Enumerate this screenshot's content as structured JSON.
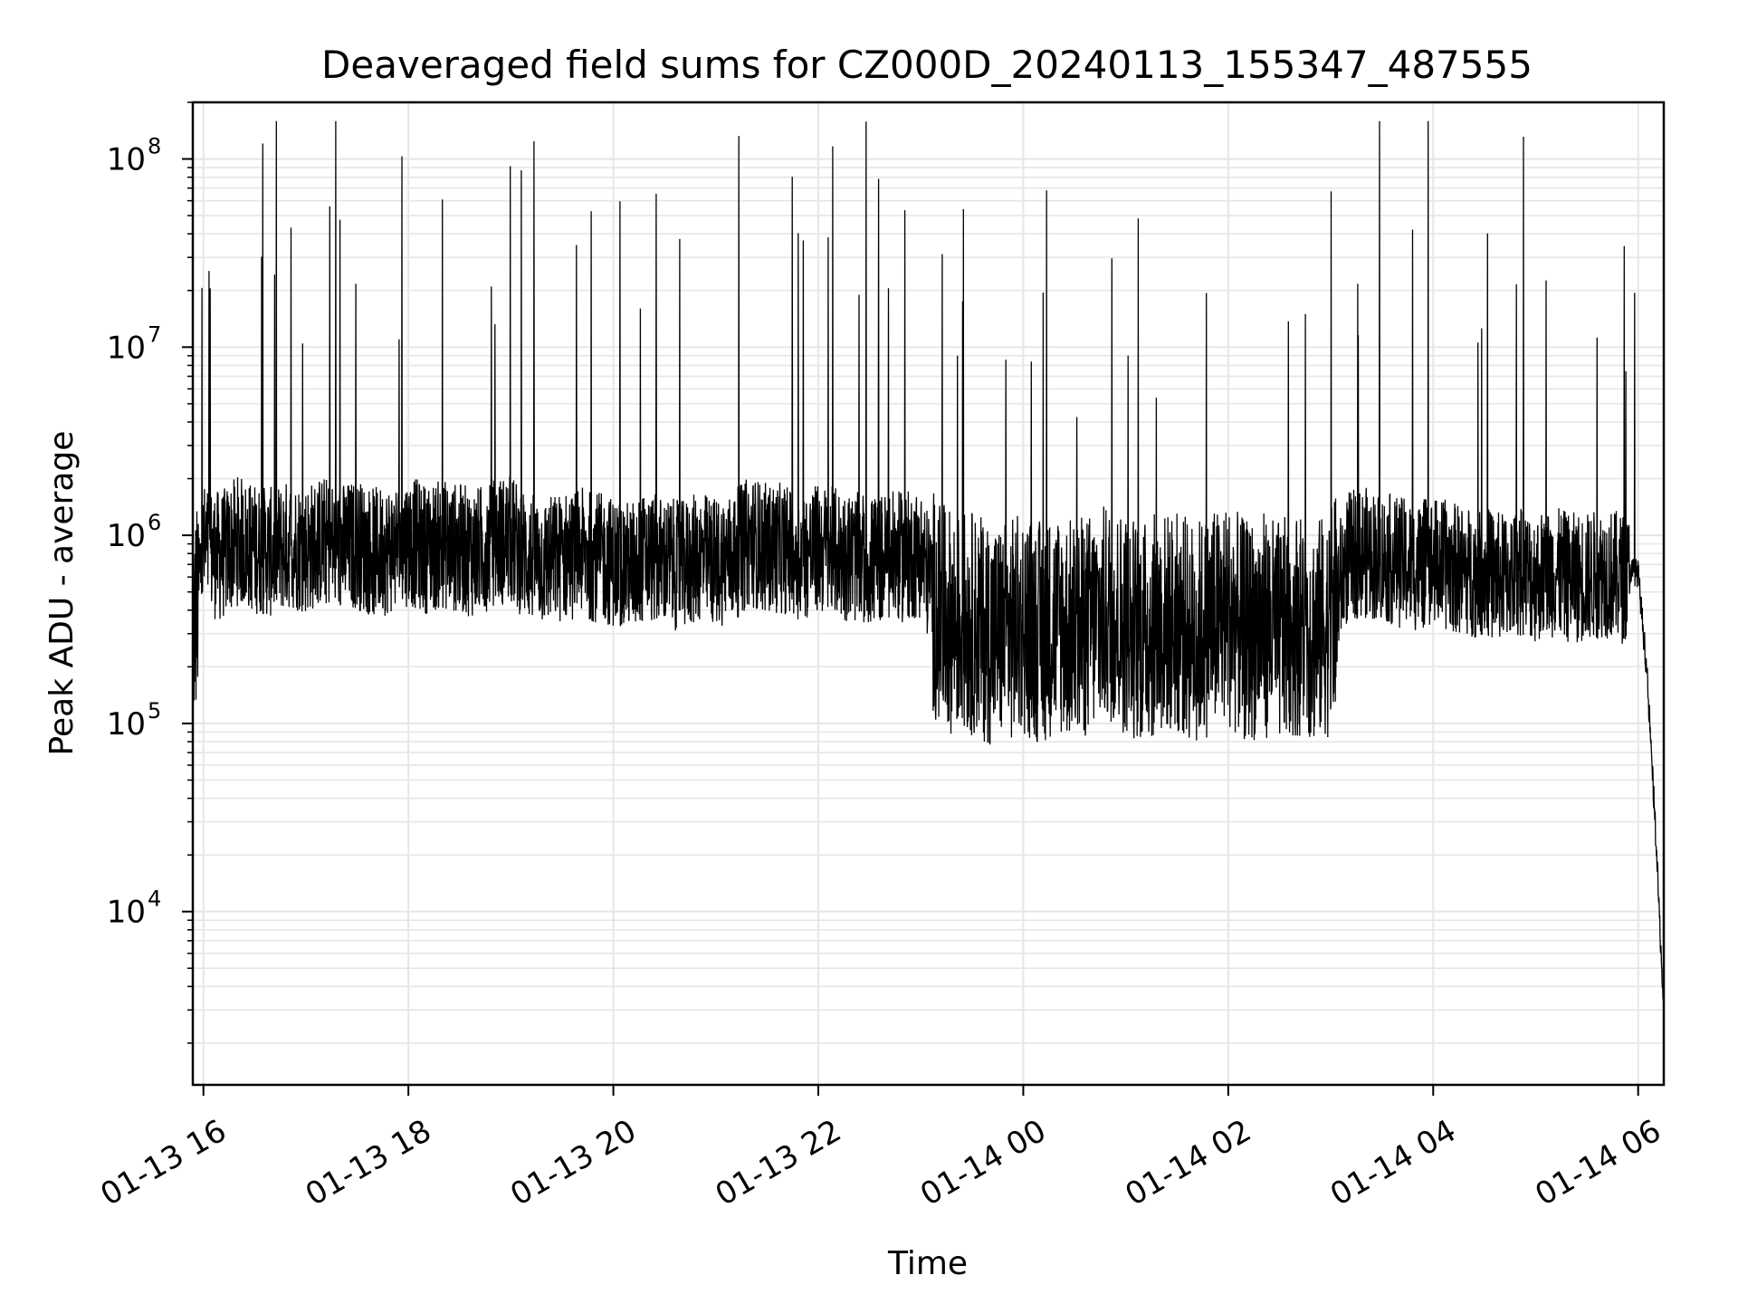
{
  "chart_data": {
    "type": "line",
    "title": "Deaveraged field sums for CZ000D_20240113_155347_487555",
    "xlabel": "Time",
    "ylabel": "Peak ADU - average",
    "yscale": "log",
    "ylim": [
      1200,
      200000000
    ],
    "xlim": [
      "2024-01-13T15:53:47",
      "2024-01-14T06:15:00"
    ],
    "grid": true,
    "line_color": "#000000",
    "grid_color": "#e6e6e6",
    "x_ticks": [
      {
        "value": "2024-01-13T16:00:00",
        "label": "01-13 16"
      },
      {
        "value": "2024-01-13T18:00:00",
        "label": "01-13 18"
      },
      {
        "value": "2024-01-13T20:00:00",
        "label": "01-13 20"
      },
      {
        "value": "2024-01-13T22:00:00",
        "label": "01-13 22"
      },
      {
        "value": "2024-01-14T00:00:00",
        "label": "01-14 00"
      },
      {
        "value": "2024-01-14T02:00:00",
        "label": "01-14 02"
      },
      {
        "value": "2024-01-14T04:00:00",
        "label": "01-14 04"
      },
      {
        "value": "2024-01-14T06:00:00",
        "label": "01-14 06"
      }
    ],
    "y_ticks": [
      {
        "value": 10000,
        "base": "10",
        "exp": "4"
      },
      {
        "value": 100000,
        "base": "10",
        "exp": "5"
      },
      {
        "value": 1000000,
        "base": "10",
        "exp": "6"
      },
      {
        "value": 10000000,
        "base": "10",
        "exp": "7"
      },
      {
        "value": 100000000,
        "base": "10",
        "exp": "8"
      }
    ],
    "series": [
      {
        "description": "noisy time series of peak ADU minus average; baseline ~1e6 before 23:00, ~5e5 between 23:00 and 03:00, ~8e5 after 03:00, dropping to ~3e3 at 06:15",
        "x": [
          "2024-01-13T15:54:00",
          "2024-01-13T16:00:00",
          "2024-01-13T16:10:00",
          "2024-01-13T16:20:00",
          "2024-01-13T16:30:00",
          "2024-01-13T16:40:00",
          "2024-01-13T16:50:00",
          "2024-01-13T17:00:00",
          "2024-01-13T17:10:00",
          "2024-01-13T17:20:00",
          "2024-01-13T17:30:00",
          "2024-01-13T17:40:00",
          "2024-01-13T17:50:00",
          "2024-01-13T18:00:00",
          "2024-01-13T18:10:00",
          "2024-01-13T18:20:00",
          "2024-01-13T18:30:00",
          "2024-01-13T18:40:00",
          "2024-01-13T18:50:00",
          "2024-01-13T19:00:00",
          "2024-01-13T19:10:00",
          "2024-01-13T19:20:00",
          "2024-01-13T19:30:00",
          "2024-01-13T19:40:00",
          "2024-01-13T19:50:00",
          "2024-01-13T20:00:00",
          "2024-01-13T20:10:00",
          "2024-01-13T20:20:00",
          "2024-01-13T20:30:00",
          "2024-01-13T20:40:00",
          "2024-01-13T20:50:00",
          "2024-01-13T21:00:00",
          "2024-01-13T21:10:00",
          "2024-01-13T21:20:00",
          "2024-01-13T21:30:00",
          "2024-01-13T21:40:00",
          "2024-01-13T21:50:00",
          "2024-01-13T22:00:00",
          "2024-01-13T22:10:00",
          "2024-01-13T22:20:00",
          "2024-01-13T22:30:00",
          "2024-01-13T22:40:00",
          "2024-01-13T22:50:00",
          "2024-01-13T23:00:00",
          "2024-01-13T23:10:00",
          "2024-01-13T23:20:00",
          "2024-01-13T23:30:00",
          "2024-01-13T23:40:00",
          "2024-01-13T23:50:00",
          "2024-01-14T00:00:00",
          "2024-01-14T00:10:00",
          "2024-01-14T00:20:00",
          "2024-01-14T00:30:00",
          "2024-01-14T00:40:00",
          "2024-01-14T00:50:00",
          "2024-01-14T01:00:00",
          "2024-01-14T01:10:00",
          "2024-01-14T01:20:00",
          "2024-01-14T01:30:00",
          "2024-01-14T01:40:00",
          "2024-01-14T01:50:00",
          "2024-01-14T02:00:00",
          "2024-01-14T02:10:00",
          "2024-01-14T02:20:00",
          "2024-01-14T02:30:00",
          "2024-01-14T02:40:00",
          "2024-01-14T02:50:00",
          "2024-01-14T03:00:00",
          "2024-01-14T03:10:00",
          "2024-01-14T03:20:00",
          "2024-01-14T03:30:00",
          "2024-01-14T03:40:00",
          "2024-01-14T03:50:00",
          "2024-01-14T04:00:00",
          "2024-01-14T04:10:00",
          "2024-01-14T04:20:00",
          "2024-01-14T04:30:00",
          "2024-01-14T04:40:00",
          "2024-01-14T04:50:00",
          "2024-01-14T05:00:00",
          "2024-01-14T05:10:00",
          "2024-01-14T05:20:00",
          "2024-01-14T05:30:00",
          "2024-01-14T05:40:00",
          "2024-01-14T05:50:00",
          "2024-01-14T06:00:00",
          "2024-01-14T06:05:00",
          "2024-01-14T06:10:00",
          "2024-01-14T06:15:00"
        ],
        "y": [
          400000,
          1000000,
          900000,
          1100000,
          1000000,
          950000,
          1050000,
          1000000,
          1100000,
          1000000,
          1050000,
          950000,
          1000000,
          1100000,
          1000000,
          1050000,
          1000000,
          950000,
          1100000,
          1100000,
          900000,
          850000,
          900000,
          950000,
          900000,
          850000,
          800000,
          900000,
          850000,
          800000,
          900000,
          850000,
          900000,
          1100000,
          1000000,
          1000000,
          900000,
          1000000,
          950000,
          900000,
          850000,
          900000,
          900000,
          950000,
          500000,
          450000,
          450000,
          400000,
          400000,
          450000,
          400000,
          450000,
          400000,
          450000,
          500000,
          450000,
          400000,
          450000,
          450000,
          400000,
          450000,
          500000,
          400000,
          450000,
          400000,
          450000,
          400000,
          450000,
          900000,
          950000,
          900000,
          850000,
          800000,
          850000,
          800000,
          750000,
          750000,
          700000,
          750000,
          700000,
          750000,
          700000,
          700000,
          750000,
          700000,
          650000,
          200000,
          30000,
          3000
        ]
      }
    ]
  }
}
